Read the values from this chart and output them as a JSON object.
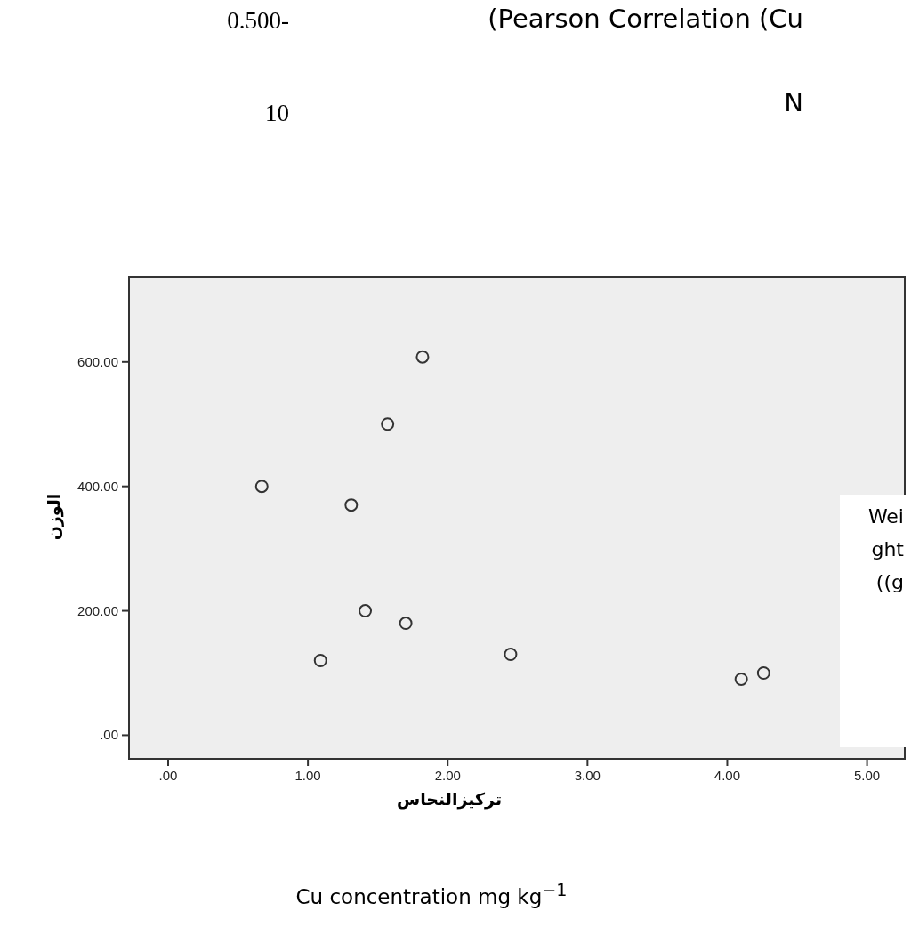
{
  "chart_data": {
    "type": "scatter",
    "xlabel": "تركيزالنحاس",
    "ylabel": "الوزن",
    "x": [
      1.82,
      1.57,
      0.67,
      1.31,
      1.41,
      1.7,
      1.09,
      2.45,
      4.1,
      4.26
    ],
    "series": [
      {
        "color": "#333333",
        "values": [
          608,
          500,
          400,
          370,
          200,
          180,
          120,
          130,
          90,
          100
        ]
      }
    ],
    "xlim": [
      -0.28,
      5.27
    ],
    "ylim": [
      -38,
      737
    ],
    "xticks": [
      {
        "value": 0,
        "label": ".00"
      },
      {
        "value": 1,
        "label": "1.00"
      },
      {
        "value": 2,
        "label": "2.00"
      },
      {
        "value": 3,
        "label": "3.00"
      },
      {
        "value": 4,
        "label": "4.00"
      },
      {
        "value": 5,
        "label": "5.00"
      }
    ],
    "yticks": [
      {
        "value": 0,
        "label": ".00"
      },
      {
        "value": 200,
        "label": "200.00"
      },
      {
        "value": 400,
        "label": "400.00"
      },
      {
        "value": 600,
        "label": "600.00"
      }
    ],
    "marker": "circle",
    "grid": false,
    "annotations": [
      "0.500-",
      "(Pearson Correlation (Cu",
      "10",
      "N",
      "Weight ((g",
      "Cu concentration mg kg$^{−1}$"
    ]
  }
}
